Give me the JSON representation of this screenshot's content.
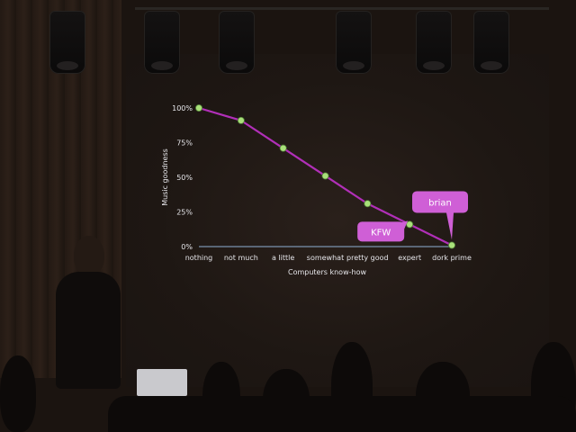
{
  "chart_data": {
    "type": "line",
    "title": "",
    "xlabel": "Computers know-how",
    "ylabel": "Music goodness",
    "categories": [
      "nothing",
      "not much",
      "a little",
      "somewhat",
      "pretty good",
      "expert",
      "dork prime"
    ],
    "series": [
      {
        "values": [
          100,
          91,
          71,
          51,
          31,
          16,
          1
        ]
      }
    ],
    "ylim": [
      0,
      100
    ],
    "yticks": [
      0,
      25,
      50,
      75,
      100
    ],
    "ytick_labels": [
      "0%",
      "25%",
      "50%",
      "75%",
      "100%"
    ],
    "grid": false,
    "annotations": [
      {
        "text": "brian",
        "category": "dork prime"
      },
      {
        "text": "KFW",
        "category": "expert"
      }
    ],
    "colors": {
      "line": "#b12fb8",
      "marker": "#a9e07a",
      "text": "#e6e6ea",
      "axis": "#8fb0d4",
      "callout": "#cf5fd6"
    }
  },
  "scene": {
    "laptop_logo": ""
  }
}
